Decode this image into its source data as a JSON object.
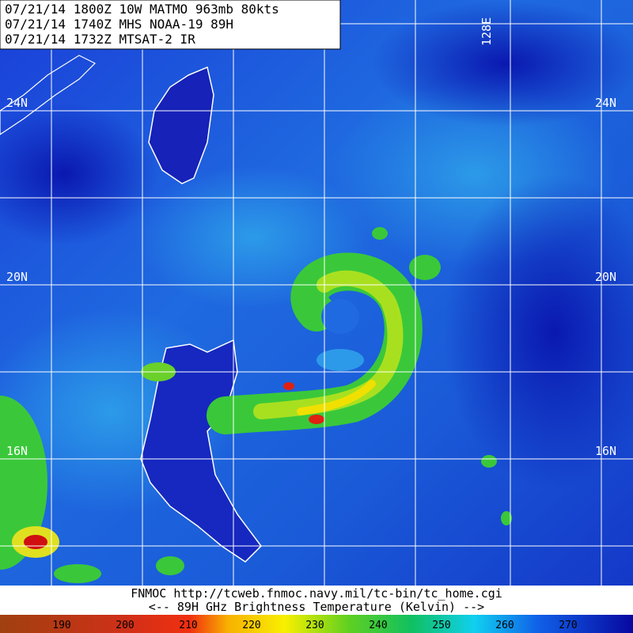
{
  "header": {
    "lines": [
      "07/21/14 1800Z  10W MATMO 963mb 80kts",
      "07/21/14 1740Z  MHS NOAA-19 89H",
      "07/21/14 1732Z  MTSAT-2 IR"
    ]
  },
  "grid_labels": {
    "lat": [
      "24N",
      "20N",
      "16N"
    ],
    "lon": [
      "128E"
    ]
  },
  "footer": {
    "source": "FNMOC  http://tcweb.fnmoc.navy.mil/tc-bin/tc_home.cgi",
    "legend": "<--  89H GHz Brightness Temperature (Kelvin)  -->"
  },
  "colorbar": {
    "ticks": [
      190,
      200,
      210,
      220,
      230,
      240,
      250,
      260,
      270
    ]
  }
}
